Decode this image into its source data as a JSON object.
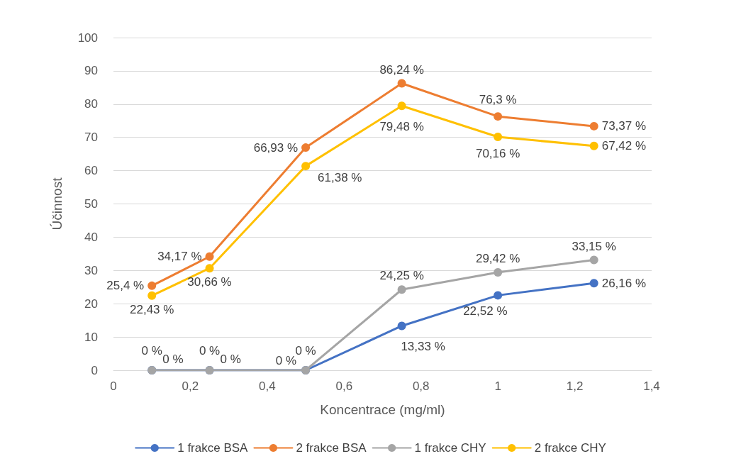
{
  "chart_data": {
    "type": "line",
    "xlabel": "Koncentrace (mg/ml)",
    "ylabel": "Účinnost",
    "x": [
      0.1,
      0.25,
      0.5,
      0.75,
      1,
      1.25
    ],
    "xlim": [
      0,
      1.4
    ],
    "xticks": [
      0,
      {
        "value": 0.2,
        "label": "0,2"
      },
      {
        "value": 0.4,
        "label": "0,4"
      },
      {
        "value": 0.6,
        "label": "0,6"
      },
      {
        "value": 0.8,
        "label": "0,8"
      },
      1,
      {
        "value": 1.2,
        "label": "1,2"
      },
      {
        "value": 1.4,
        "label": "1,4"
      }
    ],
    "ylim": [
      0,
      100
    ],
    "yticks": [
      0,
      10,
      20,
      30,
      40,
      50,
      60,
      70,
      80,
      90,
      100
    ],
    "grid": "y",
    "legend": "bottom",
    "marker": "circle",
    "line_style": "solid",
    "series": [
      {
        "name": "1 frakce BSA",
        "color": "#4472c4",
        "values": [
          0,
          0,
          0,
          13.33,
          22.52,
          26.16
        ],
        "value_labels": [
          "0 %",
          "0 %",
          "0 %",
          "13,33 %",
          "22,52 %",
          "26,16 %"
        ]
      },
      {
        "name": "2 frakce BSA",
        "color": "#ed7d31",
        "values": [
          25.4,
          34.17,
          66.93,
          86.24,
          76.3,
          73.37
        ],
        "value_labels": [
          "25,4 %",
          "34,17 %",
          "66,93 %",
          "86,24 %",
          "76,3 %",
          "73,37 %"
        ]
      },
      {
        "name": "1 frakce CHY",
        "color": "#a5a5a5",
        "values": [
          0,
          0,
          0,
          24.25,
          29.42,
          33.15
        ],
        "value_labels": [
          "0 %",
          "0 %",
          "0 %",
          "24,25 %",
          "29,42 %",
          "33,15 %"
        ]
      },
      {
        "name": "2 frakce CHY",
        "color": "#ffc000",
        "values": [
          22.43,
          30.66,
          61.38,
          79.48,
          70.16,
          67.42
        ],
        "value_labels": [
          "22,43 %",
          "30,66 %",
          "61,38 %",
          "79,48 %",
          "70,16 %",
          "67,42 %"
        ]
      }
    ]
  }
}
